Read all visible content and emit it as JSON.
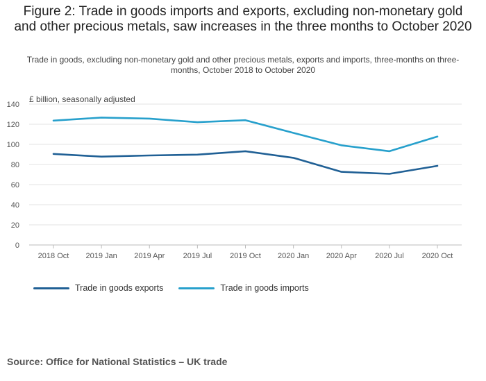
{
  "title": "Figure 2: Trade in goods imports and exports, excluding non-monetary gold and other precious metals, saw increases in the three months to October 2020",
  "subtitle": "Trade in goods, excluding non-monetary gold and other precious metals, exports and imports, three-months on three-months, October 2018 to October 2020",
  "source": "Source: Office for National Statistics – UK trade",
  "chart_data": {
    "type": "line",
    "ylabel": "£ billion, seasonally adjusted",
    "ylim": [
      0,
      140
    ],
    "yticks": [
      "0",
      "20",
      "40",
      "60",
      "80",
      "100",
      "120",
      "140"
    ],
    "categories": [
      "2018 Oct",
      "2019 Jan",
      "2019 Apr",
      "2019 Jul",
      "2019 Oct",
      "2020 Jan",
      "2020 Apr",
      "2020 Jul",
      "2020 Oct"
    ],
    "series": [
      {
        "name": "Trade in goods exports",
        "color": "#206095",
        "values": [
          90.5,
          87.8,
          89.0,
          89.8,
          93.2,
          86.6,
          72.7,
          70.7,
          78.6
        ]
      },
      {
        "name": "Trade in goods imports",
        "color": "#27a0cc",
        "values": [
          123.6,
          126.6,
          125.6,
          122.0,
          124.0,
          111.4,
          99.0,
          93.2,
          107.7
        ]
      }
    ],
    "grid": true,
    "legend_position": "bottom-left"
  }
}
